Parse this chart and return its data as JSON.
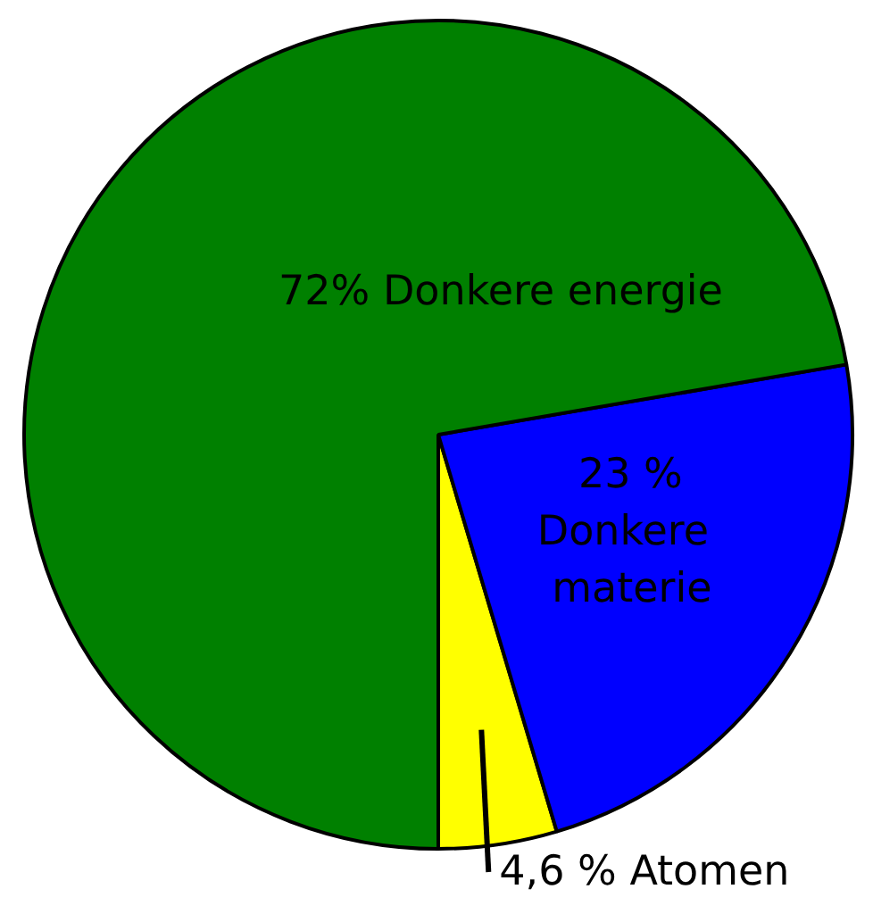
{
  "chart_data": {
    "type": "pie",
    "categories": [
      "Atomen",
      "Donkere materie",
      "Donkere energie"
    ],
    "values": [
      4.6,
      23,
      72
    ],
    "colors": [
      "#ffff00",
      "#0000ff",
      "#008000"
    ],
    "value_labels": [
      "4,6 %",
      "23 %",
      "72%"
    ]
  }
}
